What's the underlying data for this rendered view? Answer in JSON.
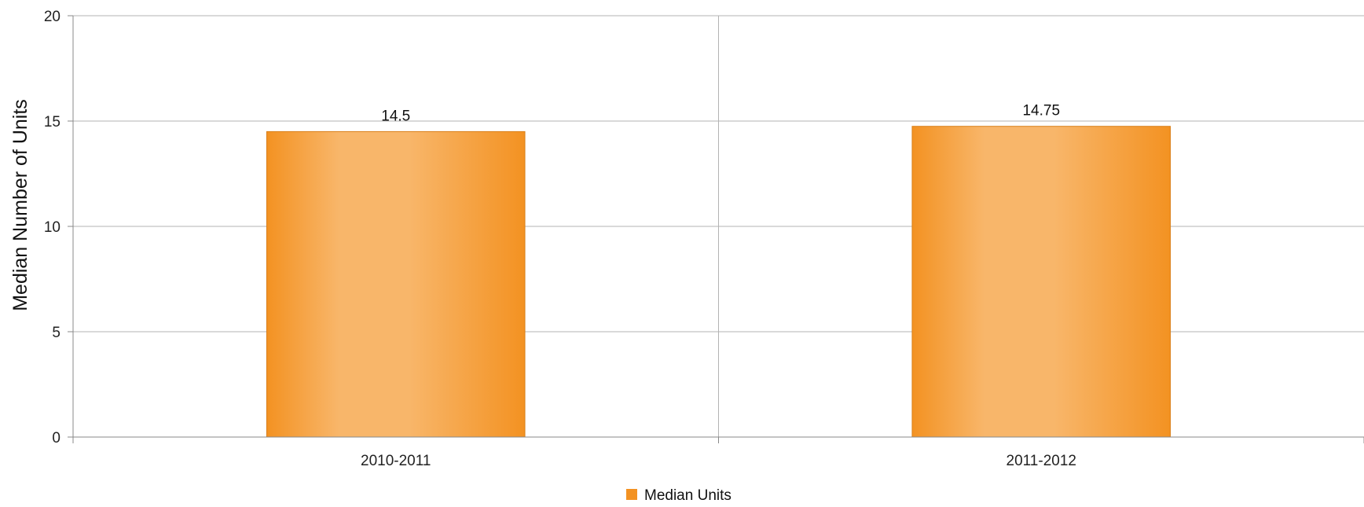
{
  "chart_data": {
    "type": "bar",
    "title": "",
    "xlabel": "",
    "ylabel": "Median Number of Units",
    "categories": [
      "2010-2011",
      "2011-2012"
    ],
    "series": [
      {
        "name": "Median Units",
        "values": [
          14.5,
          14.75
        ]
      }
    ],
    "data_labels": [
      "14.5",
      "14.75"
    ],
    "ylim": [
      0,
      20
    ],
    "y_ticks": [
      0,
      5,
      10,
      15,
      20
    ],
    "grid": true,
    "legend_position": "bottom-center",
    "colors": {
      "bar": "#f39222",
      "bar_highlight": "#f8b66a",
      "bar_border": "#d9801a",
      "grid": "#b3b3b3",
      "axis": "#888888"
    }
  }
}
